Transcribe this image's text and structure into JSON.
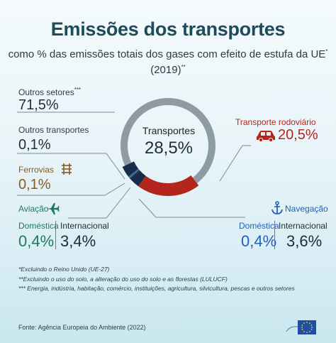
{
  "header": {
    "title": "Emissões dos transportes",
    "subtitle": "como % das emissões totais dos gases com efeito de estufa da UE",
    "subtitle_sup": "*",
    "year": "(2019)",
    "year_sup": "**"
  },
  "labels": {
    "outros_setores": "Outros setores",
    "outros_setores_sup": "***",
    "outros_setores_value": "71,5%",
    "outros_transportes": "Outros transportes",
    "outros_transportes_value": "0,1%",
    "ferrovias": "Ferrovias",
    "ferrovias_value": "0,1%",
    "aviacao": "Aviação",
    "aviacao_domestica": "Doméstica",
    "aviacao_domestica_value": "0,4%",
    "aviacao_internacional": "Internacional",
    "aviacao_internacional_value": "3,4%",
    "rodoviario": "Transporte rodoviário",
    "rodoviario_value": "20,5%",
    "navegacao": "Navegação",
    "navegacao_domestica": "Doméstica",
    "navegacao_domestica_value": "0,4%",
    "navegacao_internacional": "Internacional",
    "navegacao_internacional_value": "3,6%",
    "center_label": "Transportes",
    "center_value": "28,5%"
  },
  "notes": [
    "*Excluindo o Reino Unido (UE-27)",
    "**Excluindo o uso do solo, a alteração do uso do solo e as florestas (LULUCF)",
    "*** Energia, indústria, habitação, comércio, instituições, agricultura, silvicultura, pescas e outros setores"
  ],
  "source": "Fonte: Agência Europeia do Ambiente (2022)",
  "icons": [
    "car-icon",
    "rail-icon",
    "plane-icon",
    "anchor-icon",
    "eu-flag-icon"
  ],
  "chart_data": {
    "type": "pie",
    "categories": [
      "Outros setores",
      "Transporte rodoviário",
      "Aviação internacional",
      "Aviação doméstica",
      "Ferrovias",
      "Outros transportes",
      "Navegação doméstica",
      "Navegação internacional"
    ],
    "values": [
      71.5,
      20.5,
      3.4,
      0.4,
      0.1,
      0.1,
      0.4,
      3.6
    ],
    "colors": [
      "#8e9ba3",
      "#b3261e",
      "#1a2b4a",
      "#1a2b4a",
      "#1f7a5a",
      "#3a8a6a",
      "#2460b8",
      "#1a2b4a"
    ],
    "center_total": "28,5%"
  }
}
